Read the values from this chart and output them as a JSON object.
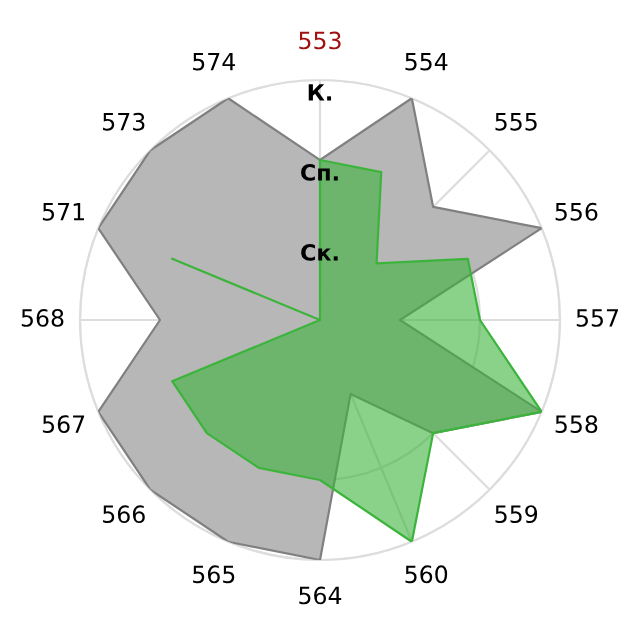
{
  "chart_data": {
    "type": "radar",
    "categories": [
      "553",
      "554",
      "555",
      "556",
      "557",
      "558",
      "559",
      "560",
      "564",
      "565",
      "566",
      "567",
      "568",
      "571",
      "573",
      "574"
    ],
    "series": [
      {
        "color": "#b7b7b7",
        "values": [
          2,
          3,
          2,
          3,
          1,
          3,
          2,
          1,
          3,
          3,
          3,
          3,
          2,
          3,
          3,
          3
        ]
      },
      {
        "color": "#3cb43c",
        "values": [
          2,
          2,
          1,
          2,
          2,
          3,
          2,
          3,
          2,
          2,
          2,
          2,
          0,
          2,
          0,
          0
        ]
      }
    ],
    "ylim": [
      0,
      3
    ],
    "yticks": [
      {
        "value": 1,
        "label": "Ск."
      },
      {
        "value": 2,
        "label": "Сп."
      },
      {
        "value": 3,
        "label": "К."
      }
    ],
    "grid": true,
    "legend": false,
    "marker": "none",
    "line_style": "solid"
  }
}
